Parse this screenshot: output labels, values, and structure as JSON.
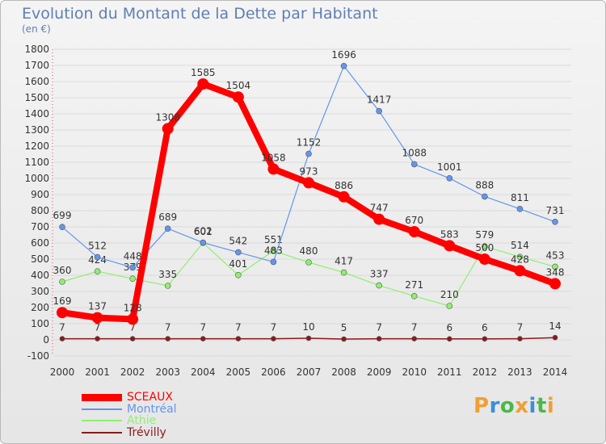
{
  "header": {
    "title": "Evolution du Montant de la Dette par Habitant",
    "unit": "(en €)",
    "title_color": "#5f7fb3"
  },
  "chart_data": {
    "type": "line",
    "title": "Evolution du Montant de la Dette par Habitant",
    "ylabel": "(en €)",
    "xlabel": "",
    "x": [
      "2000",
      "2001",
      "2002",
      "2003",
      "2004",
      "2005",
      "2006",
      "2007",
      "2008",
      "2009",
      "2010",
      "2011",
      "2012",
      "2013",
      "2014"
    ],
    "ylim": [
      -100,
      1800
    ],
    "yticks": [
      -100,
      0,
      100,
      200,
      300,
      400,
      500,
      600,
      700,
      800,
      900,
      1000,
      1100,
      1200,
      1300,
      1400,
      1500,
      1600,
      1700,
      1800
    ],
    "grid": "horizontal",
    "legend_position": "bottom-left",
    "series": [
      {
        "name": "SCEAUX",
        "color": "#ff0000",
        "values": [
          169,
          137,
          128,
          1308,
          1585,
          1504,
          1058,
          973,
          886,
          747,
          670,
          583,
          500,
          428,
          348
        ]
      },
      {
        "name": "Montréal",
        "color": "#6495ed",
        "values": [
          699,
          512,
          448,
          689,
          602,
          542,
          483,
          1152,
          1696,
          1417,
          1088,
          1001,
          888,
          811,
          731
        ]
      },
      {
        "name": "Athie",
        "color": "#90ee70",
        "values": [
          360,
          424,
          379,
          335,
          601,
          401,
          551,
          480,
          417,
          337,
          271,
          210,
          579,
          514,
          453
        ]
      },
      {
        "name": "Trévilly",
        "color": "#8b1a1a",
        "values": [
          7,
          7,
          7,
          7,
          7,
          7,
          7,
          10,
          5,
          7,
          7,
          6,
          6,
          7,
          14
        ]
      }
    ]
  },
  "legend": {
    "items": [
      {
        "label": "SCEAUX",
        "color": "#ff0000"
      },
      {
        "label": "Montréal",
        "color": "#6495ed"
      },
      {
        "label": "Athie",
        "color": "#90ee70"
      },
      {
        "label": "Trévilly",
        "color": "#8b1a1a"
      }
    ]
  },
  "brand": {
    "name": "Proxiti",
    "letters": [
      {
        "ch": "P",
        "color": "#f0a030"
      },
      {
        "ch": "r",
        "color": "#3a8fd9"
      },
      {
        "ch": "o",
        "color": "#4bb84b"
      },
      {
        "ch": "x",
        "color": "#f0a030"
      },
      {
        "ch": "i",
        "color": "#3a8fd9"
      },
      {
        "ch": "t",
        "color": "#4bb84b"
      },
      {
        "ch": "i",
        "color": "#f0a030"
      }
    ]
  }
}
